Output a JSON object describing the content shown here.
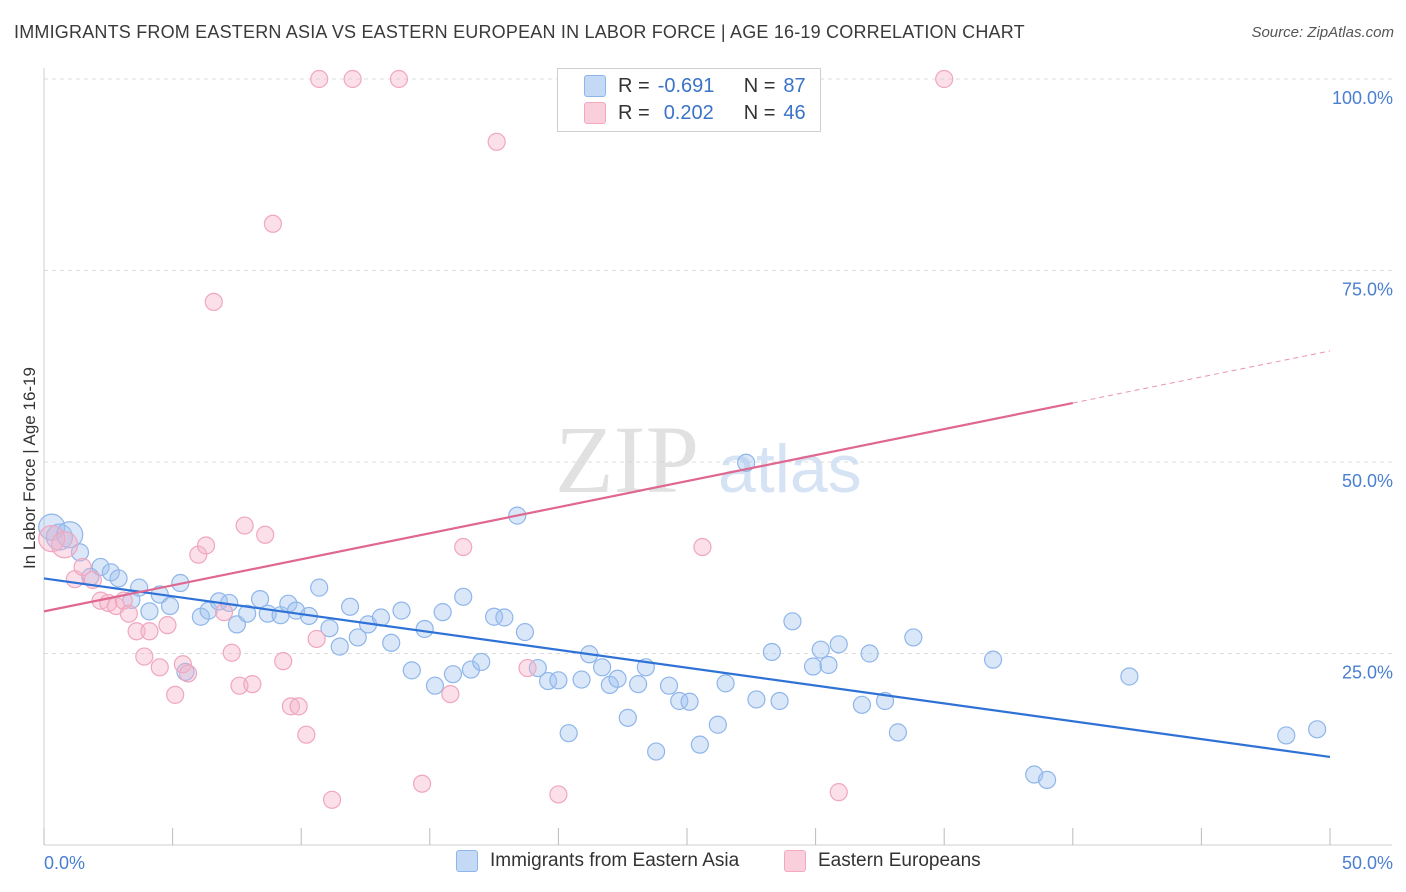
{
  "title": "IMMIGRANTS FROM EASTERN ASIA VS EASTERN EUROPEAN IN LABOR FORCE | AGE 16-19 CORRELATION CHART",
  "source": "Source: ZipAtlas.com",
  "watermark": {
    "zip": "ZIP",
    "atlas": "atlas"
  },
  "legend": {
    "rows": [
      {
        "r_label": "R =",
        "r_value": "-0.691",
        "n_label": "N =",
        "n_value": "87",
        "color": "#8fb6ea"
      },
      {
        "r_label": "R =",
        "r_value": "0.202",
        "n_label": "N =",
        "n_value": "46",
        "color": "#f4a9c0"
      }
    ]
  },
  "bottom_legend": [
    {
      "label": "Immigrants from Eastern Asia",
      "color": "#8fb6ea"
    },
    {
      "label": "Eastern Europeans",
      "color": "#f4a9c0"
    }
  ],
  "chart_data": {
    "type": "scatter",
    "title": "IMMIGRANTS FROM EASTERN ASIA VS EASTERN EUROPEAN IN LABOR FORCE | AGE 16-19 CORRELATION CHART",
    "xlabel": "",
    "ylabel": "In Labor Force | Age 16-19",
    "xlim": [
      0,
      50
    ],
    "ylim": [
      0,
      100
    ],
    "x_tick_labels": [
      "0.0%",
      "50.0%"
    ],
    "y_tick_values": [
      25,
      50,
      75,
      100
    ],
    "y_tick_labels": [
      "25.0%",
      "50.0%",
      "75.0%",
      "100.0%"
    ],
    "grid": true,
    "series": [
      {
        "name": "Immigrants from Eastern Asia",
        "color": "#6fa3e6",
        "line_color": "#2f72d6",
        "trend": {
          "x": [
            0,
            50
          ],
          "y": [
            34.8,
            11.5
          ],
          "solid_to": 50
        },
        "points": [
          [
            0.3,
            41.5
          ],
          [
            0.6,
            40.2
          ],
          [
            1.0,
            40.5
          ],
          [
            1.4,
            38.2
          ],
          [
            1.8,
            35.0
          ],
          [
            2.2,
            36.3
          ],
          [
            2.6,
            35.6
          ],
          [
            2.9,
            34.8
          ],
          [
            3.4,
            32.0
          ],
          [
            3.7,
            33.6
          ],
          [
            4.1,
            30.5
          ],
          [
            4.5,
            32.7
          ],
          [
            4.9,
            31.2
          ],
          [
            5.3,
            34.2
          ],
          [
            5.5,
            22.6
          ],
          [
            6.1,
            29.8
          ],
          [
            6.4,
            30.6
          ],
          [
            6.8,
            31.8
          ],
          [
            7.2,
            31.6
          ],
          [
            7.5,
            28.8
          ],
          [
            7.9,
            30.2
          ],
          [
            8.4,
            32.1
          ],
          [
            8.7,
            30.2
          ],
          [
            9.2,
            30.0
          ],
          [
            9.5,
            31.5
          ],
          [
            9.8,
            30.6
          ],
          [
            10.3,
            29.9
          ],
          [
            10.7,
            33.6
          ],
          [
            11.1,
            28.3
          ],
          [
            11.5,
            25.9
          ],
          [
            11.9,
            31.1
          ],
          [
            12.2,
            27.1
          ],
          [
            12.6,
            28.8
          ],
          [
            13.1,
            29.7
          ],
          [
            13.5,
            26.4
          ],
          [
            13.9,
            30.6
          ],
          [
            14.3,
            22.8
          ],
          [
            14.8,
            28.2
          ],
          [
            15.2,
            20.8
          ],
          [
            15.5,
            30.4
          ],
          [
            15.9,
            22.3
          ],
          [
            16.3,
            32.4
          ],
          [
            16.6,
            22.9
          ],
          [
            17.0,
            23.9
          ],
          [
            17.5,
            29.8
          ],
          [
            17.9,
            29.7
          ],
          [
            18.4,
            43.0
          ],
          [
            18.7,
            27.8
          ],
          [
            19.2,
            23.1
          ],
          [
            19.6,
            21.4
          ],
          [
            20.0,
            21.5
          ],
          [
            20.4,
            14.6
          ],
          [
            20.9,
            21.6
          ],
          [
            21.2,
            24.9
          ],
          [
            21.7,
            23.2
          ],
          [
            22.0,
            20.9
          ],
          [
            22.3,
            21.7
          ],
          [
            22.7,
            16.6
          ],
          [
            23.1,
            21.0
          ],
          [
            23.4,
            23.2
          ],
          [
            23.8,
            12.2
          ],
          [
            24.3,
            20.8
          ],
          [
            24.7,
            18.8
          ],
          [
            25.1,
            18.7
          ],
          [
            25.5,
            13.1
          ],
          [
            26.2,
            15.7
          ],
          [
            26.5,
            21.1
          ],
          [
            27.3,
            49.9
          ],
          [
            27.7,
            19.0
          ],
          [
            28.3,
            25.2
          ],
          [
            28.6,
            18.8
          ],
          [
            29.1,
            29.2
          ],
          [
            29.9,
            23.3
          ],
          [
            30.2,
            25.5
          ],
          [
            30.5,
            23.5
          ],
          [
            30.9,
            26.2
          ],
          [
            31.8,
            18.3
          ],
          [
            32.1,
            25.0
          ],
          [
            32.7,
            18.8
          ],
          [
            33.2,
            14.7
          ],
          [
            33.8,
            27.1
          ],
          [
            36.9,
            24.2
          ],
          [
            38.5,
            9.2
          ],
          [
            39.0,
            8.5
          ],
          [
            42.2,
            22.0
          ],
          [
            48.3,
            14.3
          ],
          [
            49.5,
            15.1
          ]
        ]
      },
      {
        "name": "Eastern Europeans",
        "color": "#f19bb6",
        "line_color": "#e0678f",
        "trend": {
          "x": [
            0,
            50
          ],
          "y": [
            30.5,
            64.5
          ],
          "solid_to": 40
        },
        "points": [
          [
            0.3,
            40.0
          ],
          [
            0.8,
            39.2
          ],
          [
            1.2,
            34.7
          ],
          [
            1.5,
            36.3
          ],
          [
            1.9,
            34.6
          ],
          [
            2.2,
            31.9
          ],
          [
            2.5,
            31.6
          ],
          [
            2.8,
            31.2
          ],
          [
            3.1,
            31.9
          ],
          [
            3.3,
            30.2
          ],
          [
            3.6,
            27.9
          ],
          [
            3.9,
            24.6
          ],
          [
            4.1,
            27.9
          ],
          [
            4.5,
            23.2
          ],
          [
            4.8,
            28.7
          ],
          [
            5.1,
            19.6
          ],
          [
            5.4,
            23.6
          ],
          [
            5.6,
            22.4
          ],
          [
            6.0,
            37.9
          ],
          [
            6.3,
            39.1
          ],
          [
            6.6,
            70.9
          ],
          [
            7.0,
            30.4
          ],
          [
            7.3,
            25.1
          ],
          [
            7.6,
            20.8
          ],
          [
            7.8,
            41.7
          ],
          [
            8.1,
            21.0
          ],
          [
            8.6,
            40.5
          ],
          [
            8.9,
            81.1
          ],
          [
            9.3,
            24.0
          ],
          [
            9.6,
            18.1
          ],
          [
            9.9,
            18.1
          ],
          [
            10.2,
            14.4
          ],
          [
            10.6,
            26.9
          ],
          [
            10.7,
            100.0
          ],
          [
            11.2,
            5.9
          ],
          [
            12.0,
            100.0
          ],
          [
            13.8,
            100.0
          ],
          [
            14.7,
            8.0
          ],
          [
            15.8,
            19.7
          ],
          [
            16.3,
            38.9
          ],
          [
            17.6,
            91.8
          ],
          [
            18.8,
            23.1
          ],
          [
            20.0,
            6.6
          ],
          [
            25.6,
            38.9
          ],
          [
            30.9,
            6.9
          ],
          [
            35.0,
            100.0
          ]
        ]
      }
    ]
  }
}
